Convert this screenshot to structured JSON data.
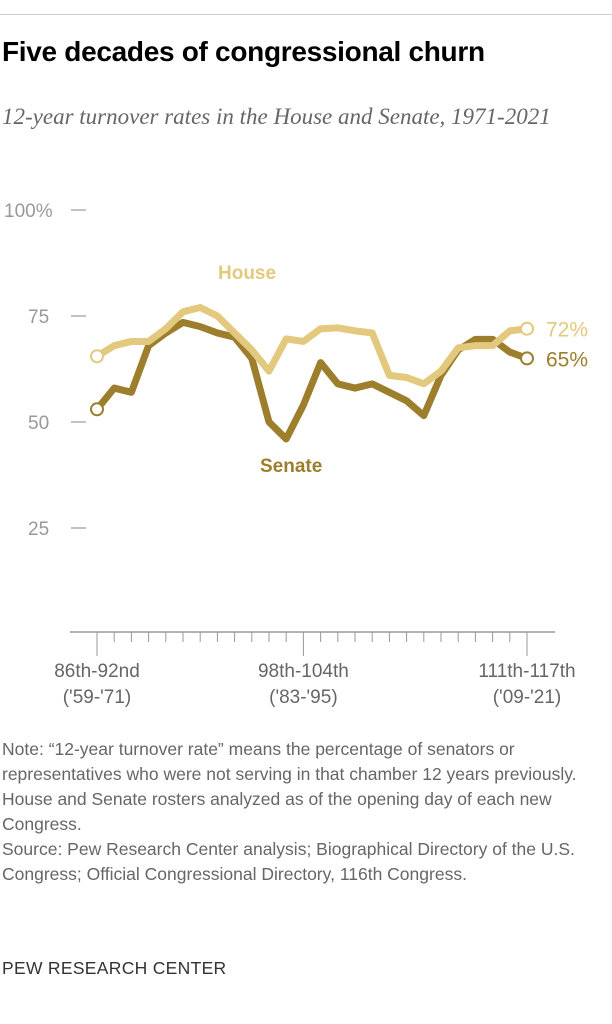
{
  "chart_data": {
    "type": "line",
    "title": "Five decades of congressional churn",
    "subtitle": "12-year turnover rates in the House and Senate, 1971-2021",
    "ylim": [
      0,
      100
    ],
    "yticks": [
      {
        "v": 100,
        "label": "100%"
      },
      {
        "v": 75,
        "label": "75"
      },
      {
        "v": 50,
        "label": "50"
      },
      {
        "v": 25,
        "label": "25"
      }
    ],
    "xtick_labels": [
      {
        "i": 0,
        "l1": "86th-92nd",
        "l2": "('59-'71)"
      },
      {
        "i": 12,
        "l1": "98th-104th",
        "l2": "('83-'95)"
      },
      {
        "i": 25,
        "l1": "111th-117th",
        "l2": "('09-'21)"
      }
    ],
    "grid": false,
    "series": [
      {
        "name": "House",
        "color": "#e3c97d",
        "end_label": "72%",
        "values": [
          65.5,
          68,
          69,
          69,
          72,
          76,
          77,
          75,
          71,
          67,
          62,
          69.6,
          69,
          72,
          72.2,
          71.5,
          71,
          61,
          60.5,
          59,
          62,
          67.5,
          68,
          68,
          71.5,
          72
        ]
      },
      {
        "name": "Senate",
        "color": "#9c7e2c",
        "end_label": "65%",
        "values": [
          53,
          58,
          57,
          68,
          71,
          73.5,
          72.5,
          71,
          70,
          65,
          50,
          46,
          54,
          64,
          59,
          58,
          59,
          57,
          55,
          51.5,
          61,
          67,
          69.5,
          69.5,
          66.5,
          65
        ]
      }
    ]
  },
  "note": "Note: “12-year turnover rate” means the percentage of senators or representatives who were not serving in that chamber 12 years previously. House and Senate rosters analyzed as of the opening day of each new Congress.",
  "source": "Source: Pew Research Center analysis; Biographical Directory of the U.S. Congress; Official Congressional Directory, 116th Congress.",
  "brand": "PEW RESEARCH CENTER"
}
